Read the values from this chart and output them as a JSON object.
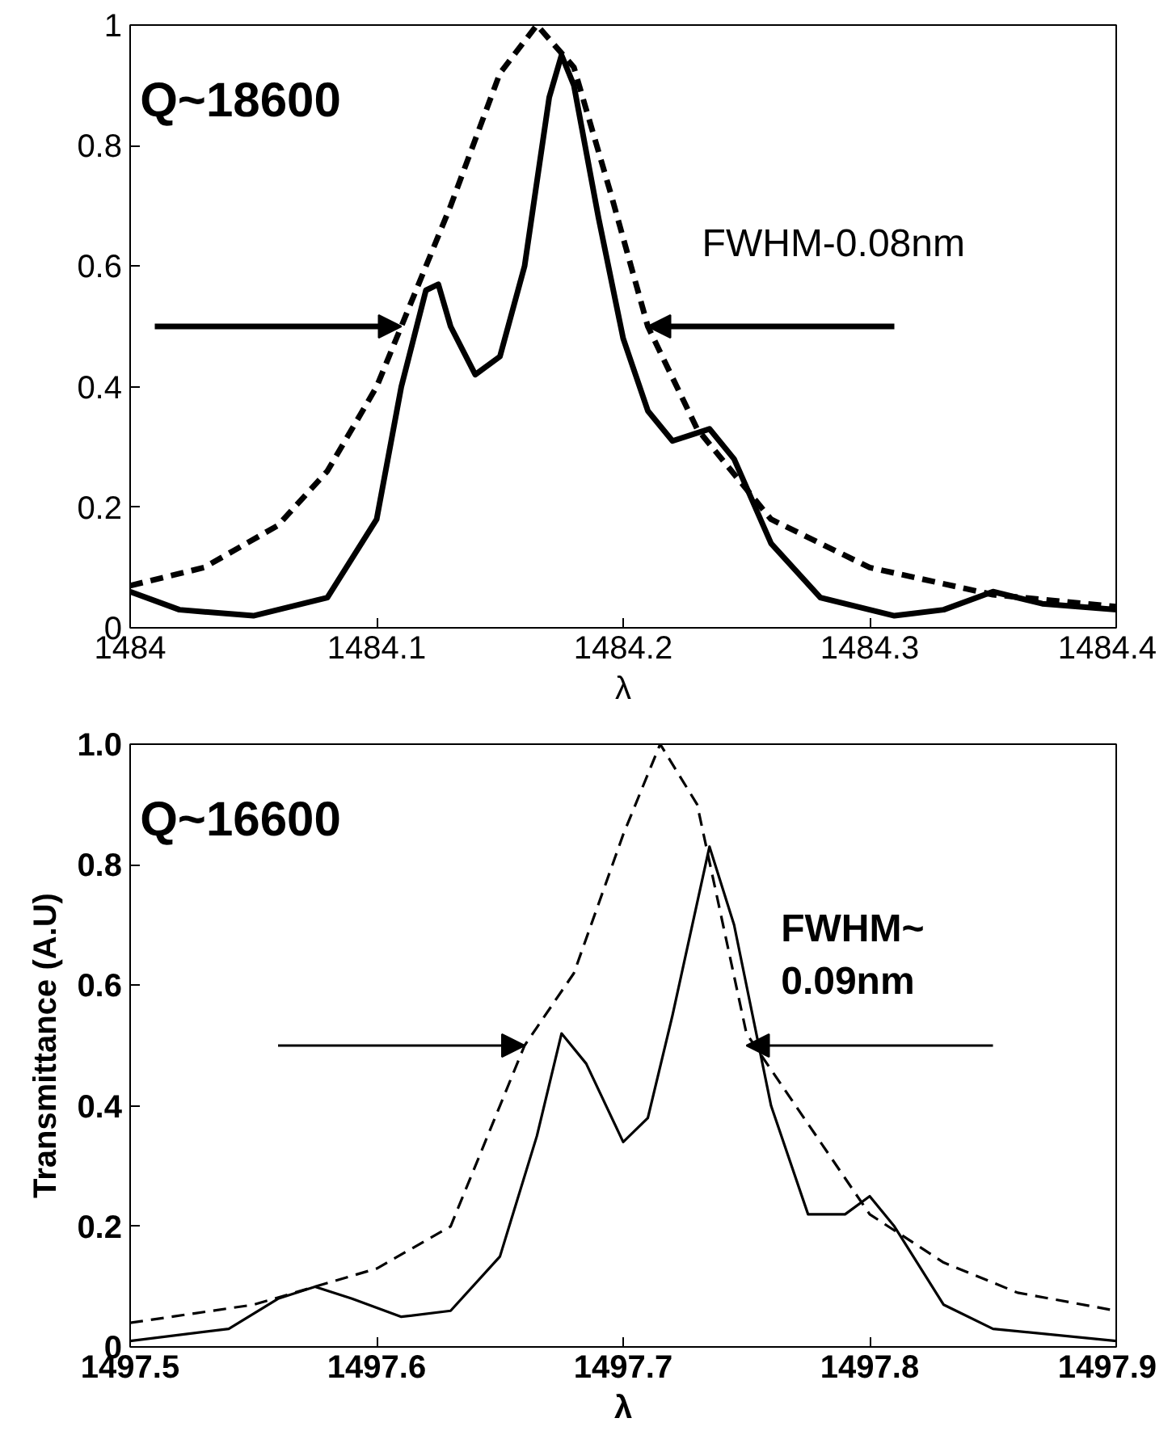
{
  "chart_data": [
    {
      "type": "line",
      "xlabel": "λ",
      "xlim": [
        1484,
        1484.4
      ],
      "ylim": [
        0,
        1
      ],
      "xticks": [
        1484,
        1484.1,
        1484.2,
        1484.3,
        1484.4
      ],
      "yticks": [
        0,
        0.2,
        0.4,
        0.6,
        0.8,
        1
      ],
      "grid": false,
      "annotations": [
        "Q~18600",
        "FWHM-0.08nm"
      ],
      "series": [
        {
          "color": "#000000",
          "line_style": "solid",
          "x": [
            1484,
            1484.02,
            1484.05,
            1484.08,
            1484.1,
            1484.11,
            1484.12,
            1484.125,
            1484.13,
            1484.14,
            1484.15,
            1484.16,
            1484.17,
            1484.175,
            1484.18,
            1484.19,
            1484.2,
            1484.21,
            1484.22,
            1484.235,
            1484.245,
            1484.26,
            1484.28,
            1484.31,
            1484.33,
            1484.35,
            1484.37,
            1484.4
          ],
          "values": [
            0.06,
            0.03,
            0.02,
            0.05,
            0.18,
            0.4,
            0.56,
            0.57,
            0.5,
            0.42,
            0.45,
            0.6,
            0.88,
            0.95,
            0.9,
            0.68,
            0.48,
            0.36,
            0.31,
            0.33,
            0.28,
            0.14,
            0.05,
            0.02,
            0.03,
            0.06,
            0.04,
            0.03
          ]
        },
        {
          "color": "#000000",
          "line_style": "dashed",
          "x": [
            1484,
            1484.03,
            1484.06,
            1484.08,
            1484.1,
            1484.11,
            1484.13,
            1484.15,
            1484.165,
            1484.18,
            1484.195,
            1484.21,
            1484.23,
            1484.26,
            1484.3,
            1484.35,
            1484.4
          ],
          "values": [
            0.07,
            0.1,
            0.17,
            0.26,
            0.4,
            0.5,
            0.7,
            0.92,
            1.0,
            0.93,
            0.72,
            0.5,
            0.33,
            0.18,
            0.1,
            0.055,
            0.035
          ]
        }
      ]
    },
    {
      "type": "line",
      "xlabel": "λ",
      "ylabel": "Transmittance (A.U)",
      "xlim": [
        1497.5,
        1497.9
      ],
      "ylim": [
        0,
        1
      ],
      "xticks": [
        1497.5,
        1497.6,
        1497.7,
        1497.8,
        1497.9
      ],
      "yticks": [
        0,
        0.2,
        0.4,
        0.6,
        0.8,
        {
          "value": 1,
          "label": "1.0"
        }
      ],
      "grid": false,
      "annotations": [
        "Q~16600",
        "FWHM~\n0.09nm"
      ],
      "series": [
        {
          "color": "#000000",
          "line_style": "solid",
          "x": [
            1497.5,
            1497.54,
            1497.56,
            1497.575,
            1497.59,
            1497.61,
            1497.63,
            1497.65,
            1497.665,
            1497.675,
            1497.685,
            1497.7,
            1497.71,
            1497.72,
            1497.735,
            1497.745,
            1497.76,
            1497.775,
            1497.79,
            1497.8,
            1497.81,
            1497.83,
            1497.85,
            1497.9
          ],
          "values": [
            0.01,
            0.03,
            0.08,
            0.1,
            0.08,
            0.05,
            0.06,
            0.15,
            0.35,
            0.52,
            0.47,
            0.34,
            0.38,
            0.55,
            0.83,
            0.7,
            0.4,
            0.22,
            0.22,
            0.25,
            0.2,
            0.07,
            0.03,
            0.01
          ]
        },
        {
          "color": "#000000",
          "line_style": "dashed",
          "x": [
            1497.5,
            1497.55,
            1497.6,
            1497.63,
            1497.66,
            1497.68,
            1497.7,
            1497.715,
            1497.73,
            1497.75,
            1497.77,
            1497.8,
            1497.83,
            1497.86,
            1497.9
          ],
          "values": [
            0.04,
            0.07,
            0.13,
            0.2,
            0.5,
            0.62,
            0.85,
            1.0,
            0.9,
            0.52,
            0.4,
            0.22,
            0.14,
            0.09,
            0.06
          ]
        }
      ]
    }
  ]
}
